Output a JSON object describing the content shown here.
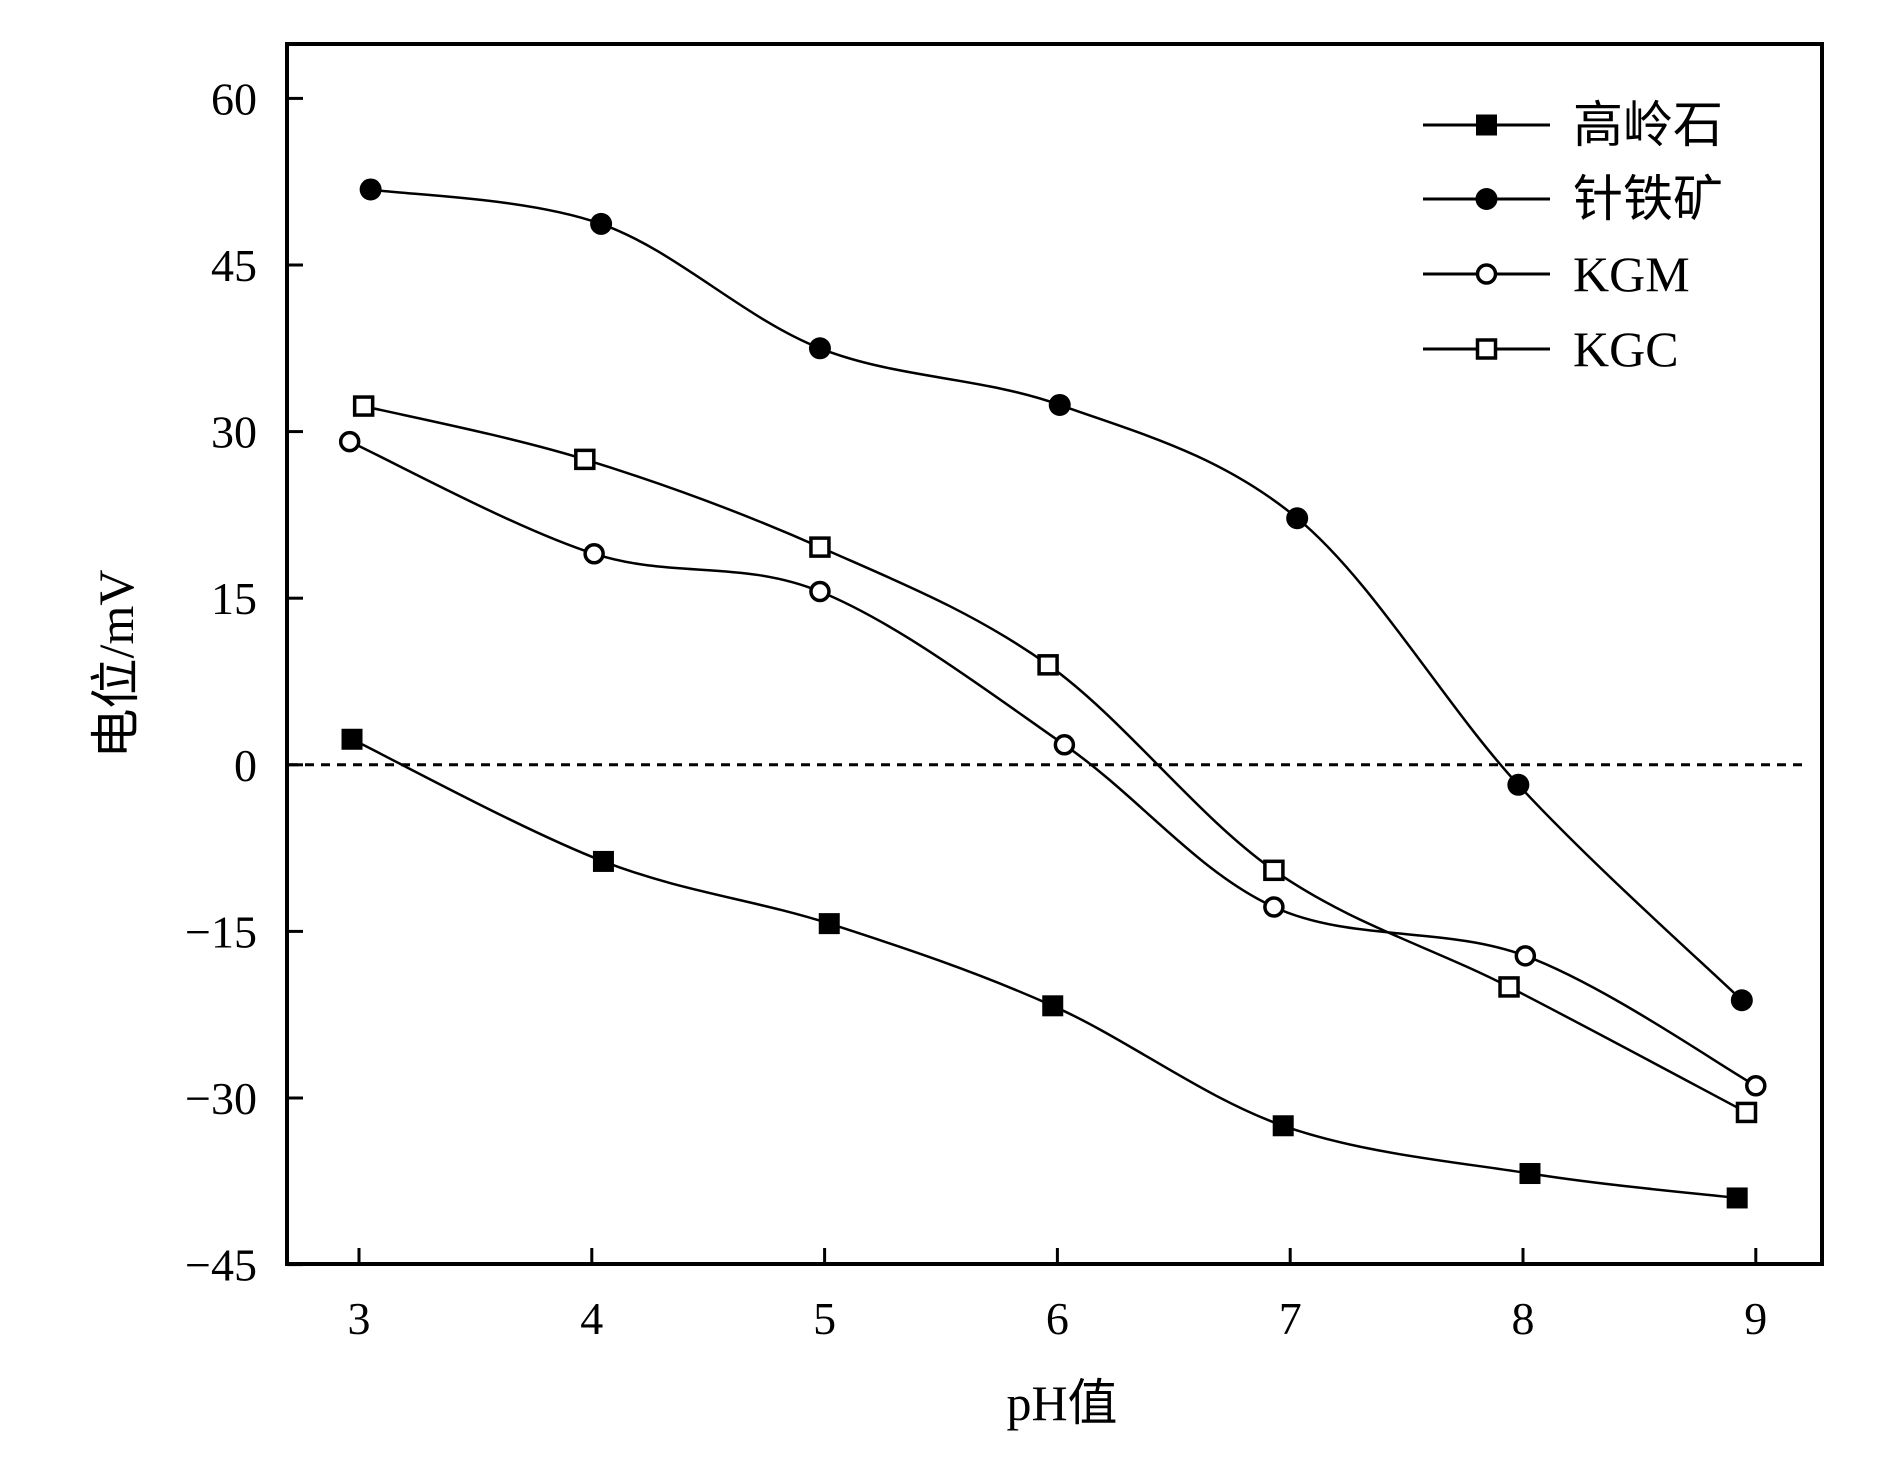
{
  "chart_data": {
    "type": "scatter",
    "xlabel": "pH值",
    "ylabel": "电位/mV",
    "xlim": [
      2.7,
      9.3
    ],
    "ylim": [
      -45,
      65
    ],
    "xticks": [
      "3",
      "4",
      "5",
      "6",
      "7",
      "8",
      "9"
    ],
    "yticks": [
      "60",
      "45",
      "30",
      "15",
      "0",
      "−15",
      "−30",
      "−45"
    ],
    "grid": false,
    "legend_position": "top-right",
    "reference_line": {
      "y": 0,
      "style": "dashed"
    },
    "series": [
      {
        "name": "高岭石",
        "marker": "filled-square",
        "x": [
          2.97,
          4.05,
          5.02,
          5.98,
          6.97,
          8.03,
          8.92
        ],
        "y": [
          2.3,
          -8.7,
          -14.3,
          -21.7,
          -32.5,
          -36.8,
          -39.0
        ]
      },
      {
        "name": "针铁矿",
        "marker": "filled-circle",
        "x": [
          3.05,
          4.04,
          4.98,
          6.01,
          7.03,
          7.98,
          8.94
        ],
        "y": [
          51.8,
          48.7,
          37.5,
          32.4,
          22.2,
          -1.8,
          -21.2
        ]
      },
      {
        "name": "KGM",
        "marker": "open-circle",
        "x": [
          2.96,
          4.01,
          4.98,
          6.03,
          6.93,
          8.01,
          9.0
        ],
        "y": [
          29.1,
          19.0,
          15.6,
          1.8,
          -12.8,
          -17.2,
          -28.9
        ]
      },
      {
        "name": "KGC",
        "marker": "open-square",
        "x": [
          3.02,
          3.97,
          4.98,
          5.96,
          6.93,
          7.94,
          8.96
        ],
        "y": [
          32.3,
          27.5,
          19.6,
          9.0,
          -9.5,
          -20.0,
          -31.3
        ]
      }
    ]
  }
}
